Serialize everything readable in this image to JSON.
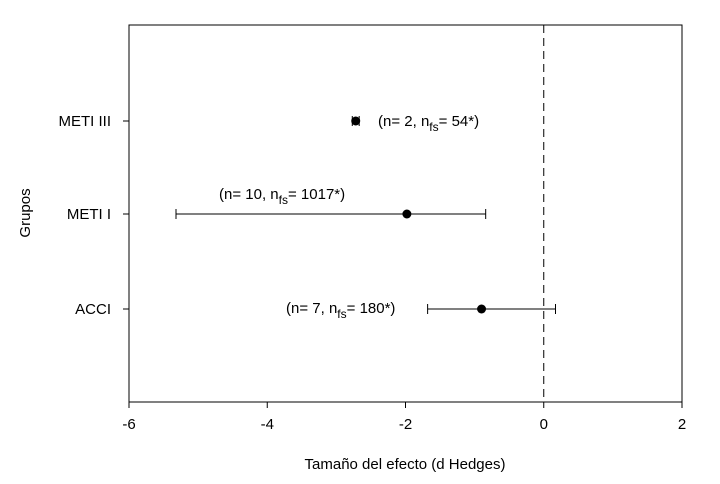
{
  "chart_data": {
    "type": "forest",
    "title": "",
    "xlabel": "Tamaño del efecto (d Hedges)",
    "ylabel": "Grupos",
    "xlim": [
      -6,
      2
    ],
    "xticks": [
      "-6",
      "-4",
      "-2",
      "0",
      "2"
    ],
    "reference_line": {
      "x": 0,
      "style": "dashed"
    },
    "grid": false,
    "categories": [
      "METI III",
      "METI I",
      "ACCI"
    ],
    "points": [
      {
        "category": "METI III",
        "effect": -2.72,
        "ci_low": -2.77,
        "ci_high": -2.67,
        "annotation": {
          "prefix": "(n= 2, n",
          "sub": "fs",
          "suffix": "= 54*)"
        }
      },
      {
        "category": "METI I",
        "effect": -1.98,
        "ci_low": -5.32,
        "ci_high": -0.84,
        "annotation": {
          "prefix": "(n= 10, n",
          "sub": "fs",
          "suffix": "= 1017*)"
        }
      },
      {
        "category": "ACCI",
        "effect": -0.9,
        "ci_low": -1.68,
        "ci_high": 0.17,
        "annotation": {
          "prefix": "(n= 7, n",
          "sub": "fs",
          "suffix": "= 180*)"
        }
      }
    ]
  }
}
